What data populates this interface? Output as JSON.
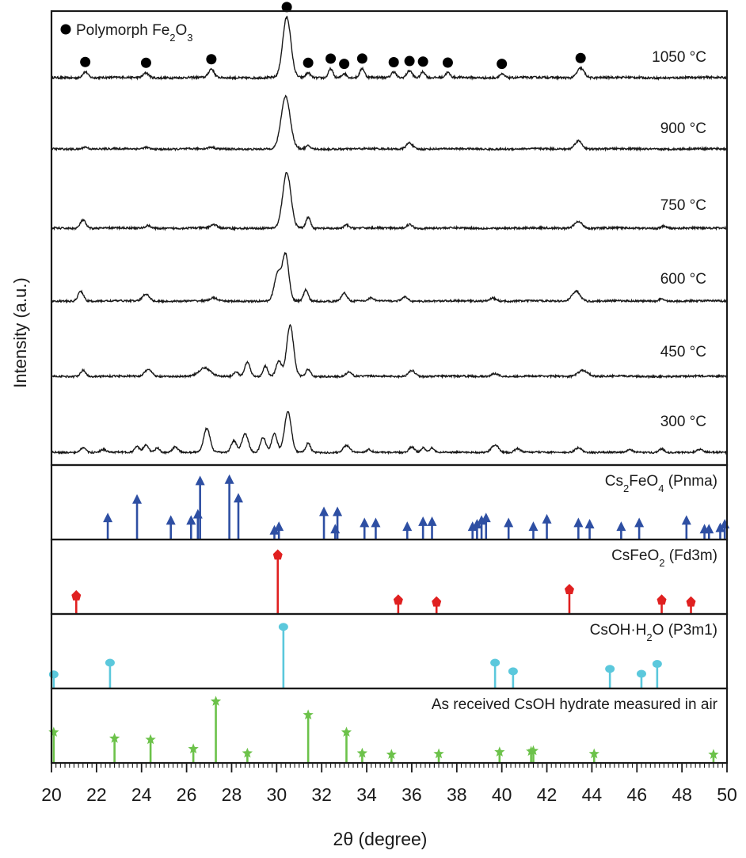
{
  "chart_data": {
    "type": "line",
    "xlabel": "2θ (degree)",
    "ylabel": "Intensity (a.u.)",
    "xlim": [
      20,
      50
    ],
    "xticks": [
      "20",
      "22",
      "24",
      "26",
      "28",
      "30",
      "32",
      "34",
      "36",
      "38",
      "40",
      "42",
      "44",
      "46",
      "48",
      "50"
    ],
    "legend": {
      "marker": "●",
      "prefix": "Polymorph Fe",
      "sub1": "2",
      "mid": "O",
      "sub2": "3"
    },
    "xrd_patterns": [
      {
        "temperature": "1050 °C",
        "peaks": [
          {
            "x": 21.5,
            "h": 0.1,
            "w": 0.12
          },
          {
            "x": 24.2,
            "h": 0.08,
            "w": 0.12
          },
          {
            "x": 27.1,
            "h": 0.14,
            "w": 0.12
          },
          {
            "x": 30.45,
            "h": 1.0,
            "w": 0.18
          },
          {
            "x": 31.4,
            "h": 0.08,
            "w": 0.1
          },
          {
            "x": 32.4,
            "h": 0.15,
            "w": 0.1
          },
          {
            "x": 33.0,
            "h": 0.07,
            "w": 0.1
          },
          {
            "x": 33.8,
            "h": 0.15,
            "w": 0.1
          },
          {
            "x": 35.2,
            "h": 0.1,
            "w": 0.1
          },
          {
            "x": 35.9,
            "h": 0.12,
            "w": 0.12
          },
          {
            "x": 36.5,
            "h": 0.1,
            "w": 0.1
          },
          {
            "x": 37.6,
            "h": 0.08,
            "w": 0.1
          },
          {
            "x": 40.0,
            "h": 0.06,
            "w": 0.12
          },
          {
            "x": 43.5,
            "h": 0.16,
            "w": 0.16
          }
        ],
        "markers_x": [
          21.5,
          24.2,
          27.1,
          30.45,
          31.4,
          32.4,
          33.0,
          33.8,
          35.2,
          35.9,
          36.5,
          37.6,
          40.0,
          43.5
        ]
      },
      {
        "temperature": "900 °C",
        "peaks": [
          {
            "x": 21.5,
            "h": 0.04,
            "w": 0.12
          },
          {
            "x": 24.2,
            "h": 0.03,
            "w": 0.12
          },
          {
            "x": 27.1,
            "h": 0.03,
            "w": 0.12
          },
          {
            "x": 30.4,
            "h": 1.0,
            "w": 0.2
          },
          {
            "x": 31.4,
            "h": 0.06,
            "w": 0.1
          },
          {
            "x": 35.9,
            "h": 0.12,
            "w": 0.14
          },
          {
            "x": 43.4,
            "h": 0.16,
            "w": 0.16
          }
        ]
      },
      {
        "temperature": "750 °C",
        "peaks": [
          {
            "x": 21.4,
            "h": 0.15,
            "w": 0.12
          },
          {
            "x": 24.3,
            "h": 0.05,
            "w": 0.12
          },
          {
            "x": 27.2,
            "h": 0.06,
            "w": 0.14
          },
          {
            "x": 30.45,
            "h": 1.0,
            "w": 0.18
          },
          {
            "x": 31.4,
            "h": 0.2,
            "w": 0.1
          },
          {
            "x": 33.1,
            "h": 0.06,
            "w": 0.1
          },
          {
            "x": 35.9,
            "h": 0.07,
            "w": 0.14
          },
          {
            "x": 43.4,
            "h": 0.12,
            "w": 0.18
          },
          {
            "x": 47.2,
            "h": 0.04,
            "w": 0.12
          }
        ]
      },
      {
        "temperature": "600 °C",
        "peaks": [
          {
            "x": 21.3,
            "h": 0.2,
            "w": 0.12
          },
          {
            "x": 24.2,
            "h": 0.14,
            "w": 0.15
          },
          {
            "x": 27.2,
            "h": 0.06,
            "w": 0.15
          },
          {
            "x": 30.05,
            "h": 0.55,
            "w": 0.15
          },
          {
            "x": 30.4,
            "h": 0.9,
            "w": 0.14
          },
          {
            "x": 31.3,
            "h": 0.22,
            "w": 0.1
          },
          {
            "x": 33.0,
            "h": 0.16,
            "w": 0.12
          },
          {
            "x": 34.2,
            "h": 0.06,
            "w": 0.12
          },
          {
            "x": 35.7,
            "h": 0.08,
            "w": 0.14
          },
          {
            "x": 39.6,
            "h": 0.06,
            "w": 0.15
          },
          {
            "x": 43.3,
            "h": 0.2,
            "w": 0.18
          },
          {
            "x": 47.1,
            "h": 0.05,
            "w": 0.12
          }
        ]
      },
      {
        "temperature": "450 °C",
        "peaks": [
          {
            "x": 21.4,
            "h": 0.12,
            "w": 0.12
          },
          {
            "x": 24.3,
            "h": 0.14,
            "w": 0.15
          },
          {
            "x": 26.8,
            "h": 0.16,
            "w": 0.25
          },
          {
            "x": 28.2,
            "h": 0.1,
            "w": 0.1
          },
          {
            "x": 28.7,
            "h": 0.28,
            "w": 0.12
          },
          {
            "x": 29.5,
            "h": 0.2,
            "w": 0.1
          },
          {
            "x": 30.1,
            "h": 0.3,
            "w": 0.12
          },
          {
            "x": 30.6,
            "h": 1.0,
            "w": 0.15
          },
          {
            "x": 31.4,
            "h": 0.14,
            "w": 0.1
          },
          {
            "x": 33.2,
            "h": 0.08,
            "w": 0.12
          },
          {
            "x": 36.0,
            "h": 0.12,
            "w": 0.15
          },
          {
            "x": 39.7,
            "h": 0.06,
            "w": 0.15
          },
          {
            "x": 43.6,
            "h": 0.12,
            "w": 0.22
          }
        ]
      },
      {
        "temperature": "300 °C",
        "peaks": [
          {
            "x": 21.4,
            "h": 0.1,
            "w": 0.12
          },
          {
            "x": 22.3,
            "h": 0.06,
            "w": 0.12
          },
          {
            "x": 23.8,
            "h": 0.12,
            "w": 0.1
          },
          {
            "x": 24.2,
            "h": 0.16,
            "w": 0.12
          },
          {
            "x": 24.7,
            "h": 0.1,
            "w": 0.1
          },
          {
            "x": 25.5,
            "h": 0.12,
            "w": 0.12
          },
          {
            "x": 26.9,
            "h": 0.5,
            "w": 0.14
          },
          {
            "x": 28.1,
            "h": 0.25,
            "w": 0.12
          },
          {
            "x": 28.6,
            "h": 0.4,
            "w": 0.14
          },
          {
            "x": 29.4,
            "h": 0.32,
            "w": 0.12
          },
          {
            "x": 29.9,
            "h": 0.4,
            "w": 0.12
          },
          {
            "x": 30.5,
            "h": 0.85,
            "w": 0.15
          },
          {
            "x": 31.4,
            "h": 0.2,
            "w": 0.1
          },
          {
            "x": 33.1,
            "h": 0.15,
            "w": 0.14
          },
          {
            "x": 34.1,
            "h": 0.06,
            "w": 0.1
          },
          {
            "x": 36.0,
            "h": 0.12,
            "w": 0.12
          },
          {
            "x": 36.5,
            "h": 0.1,
            "w": 0.1
          },
          {
            "x": 36.9,
            "h": 0.1,
            "w": 0.1
          },
          {
            "x": 39.7,
            "h": 0.16,
            "w": 0.16
          },
          {
            "x": 40.7,
            "h": 0.08,
            "w": 0.12
          },
          {
            "x": 43.4,
            "h": 0.1,
            "w": 0.15
          },
          {
            "x": 45.7,
            "h": 0.05,
            "w": 0.12
          },
          {
            "x": 47.1,
            "h": 0.08,
            "w": 0.12
          },
          {
            "x": 48.8,
            "h": 0.06,
            "w": 0.12
          }
        ]
      }
    ],
    "references": [
      {
        "name": "Cs₂FeO₄ (Pnma)",
        "label": {
          "pre": "Cs",
          "sub": "2",
          "post": "FeO",
          "sub2": "4",
          "tail": " (Pnma)"
        },
        "color": "#2e4fa3",
        "marker": "arrow",
        "peaks": [
          {
            "x": 22.5,
            "i": 0.28
          },
          {
            "x": 23.8,
            "i": 0.58
          },
          {
            "x": 25.3,
            "i": 0.24
          },
          {
            "x": 26.2,
            "i": 0.24
          },
          {
            "x": 26.5,
            "i": 0.34
          },
          {
            "x": 26.6,
            "i": 0.88
          },
          {
            "x": 27.9,
            "i": 0.9
          },
          {
            "x": 28.3,
            "i": 0.6
          },
          {
            "x": 29.9,
            "i": 0.08
          },
          {
            "x": 30.1,
            "i": 0.14
          },
          {
            "x": 32.1,
            "i": 0.38
          },
          {
            "x": 32.6,
            "i": 0.1
          },
          {
            "x": 32.7,
            "i": 0.38
          },
          {
            "x": 33.9,
            "i": 0.2
          },
          {
            "x": 34.4,
            "i": 0.2
          },
          {
            "x": 35.8,
            "i": 0.14
          },
          {
            "x": 36.5,
            "i": 0.22
          },
          {
            "x": 36.9,
            "i": 0.22
          },
          {
            "x": 38.7,
            "i": 0.14
          },
          {
            "x": 38.9,
            "i": 0.18
          },
          {
            "x": 39.1,
            "i": 0.24
          },
          {
            "x": 39.3,
            "i": 0.28
          },
          {
            "x": 40.3,
            "i": 0.2
          },
          {
            "x": 41.4,
            "i": 0.14
          },
          {
            "x": 42.0,
            "i": 0.26
          },
          {
            "x": 43.4,
            "i": 0.2
          },
          {
            "x": 43.9,
            "i": 0.18
          },
          {
            "x": 45.3,
            "i": 0.14
          },
          {
            "x": 46.1,
            "i": 0.2
          },
          {
            "x": 48.2,
            "i": 0.24
          },
          {
            "x": 49.0,
            "i": 0.1
          },
          {
            "x": 49.2,
            "i": 0.1
          },
          {
            "x": 49.7,
            "i": 0.12
          },
          {
            "x": 49.9,
            "i": 0.18
          }
        ]
      },
      {
        "name": "CsFeO₂ (Fd3m)",
        "label": {
          "pre": "CsFeO",
          "sub": "2",
          "post": " (Fd3m)",
          "sub2": "",
          "tail": ""
        },
        "color": "#e02020",
        "marker": "diamond",
        "peaks": [
          {
            "x": 21.1,
            "i": 0.22
          },
          {
            "x": 30.05,
            "i": 0.88
          },
          {
            "x": 35.4,
            "i": 0.15
          },
          {
            "x": 37.1,
            "i": 0.12
          },
          {
            "x": 43.0,
            "i": 0.32
          },
          {
            "x": 47.1,
            "i": 0.15
          },
          {
            "x": 48.4,
            "i": 0.12
          }
        ]
      },
      {
        "name": "CsOH·H₂O (P3m1)",
        "label": {
          "pre": "CsOH·H",
          "sub": "2",
          "post": "O (P3m1)",
          "sub2": "",
          "tail": ""
        },
        "color": "#5bc8dc",
        "marker": "circle",
        "peaks": [
          {
            "x": 20.1,
            "i": 0.15
          },
          {
            "x": 22.6,
            "i": 0.34
          },
          {
            "x": 30.3,
            "i": 0.92
          },
          {
            "x": 39.7,
            "i": 0.34
          },
          {
            "x": 40.5,
            "i": 0.2
          },
          {
            "x": 44.8,
            "i": 0.24
          },
          {
            "x": 46.2,
            "i": 0.16
          },
          {
            "x": 46.9,
            "i": 0.32
          }
        ]
      },
      {
        "name": "As received CsOH hydrate measured in air",
        "label": {
          "pre": "As received CsOH hydrate measured in air",
          "sub": "",
          "post": "",
          "sub2": "",
          "tail": ""
        },
        "color": "#6cc24a",
        "marker": "star",
        "peaks": [
          {
            "x": 20.1,
            "i": 0.42
          },
          {
            "x": 22.8,
            "i": 0.32
          },
          {
            "x": 24.4,
            "i": 0.3
          },
          {
            "x": 26.3,
            "i": 0.15
          },
          {
            "x": 27.3,
            "i": 0.92
          },
          {
            "x": 28.7,
            "i": 0.08
          },
          {
            "x": 31.4,
            "i": 0.7
          },
          {
            "x": 33.1,
            "i": 0.42
          },
          {
            "x": 33.8,
            "i": 0.08
          },
          {
            "x": 35.1,
            "i": 0.06
          },
          {
            "x": 37.2,
            "i": 0.07
          },
          {
            "x": 39.9,
            "i": 0.1
          },
          {
            "x": 41.3,
            "i": 0.11
          },
          {
            "x": 41.4,
            "i": 0.12
          },
          {
            "x": 44.1,
            "i": 0.07
          },
          {
            "x": 49.4,
            "i": 0.06
          }
        ]
      }
    ],
    "colors": {
      "pattern_line": "#1a1a1a",
      "fe2o3_marker": "#000000",
      "frame": "#1a1a1a"
    }
  }
}
